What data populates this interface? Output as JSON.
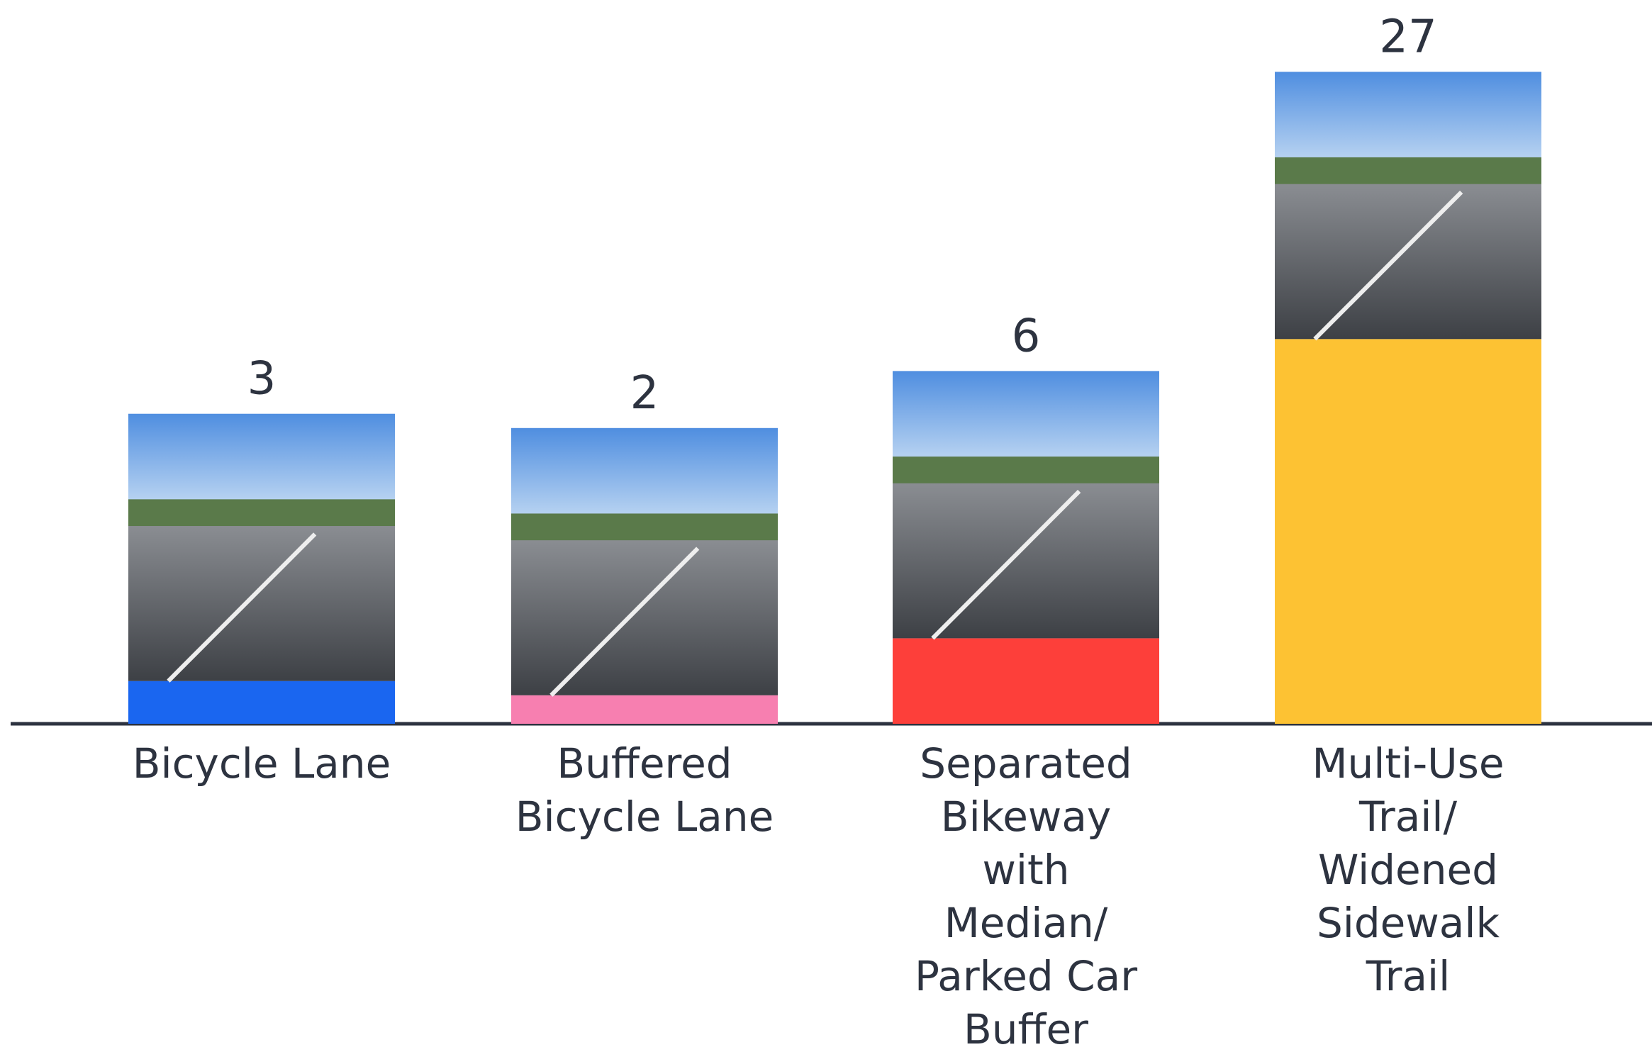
{
  "chart_data": {
    "type": "bar",
    "categories": [
      "Bicycle Lane",
      "Buffered Bicycle Lane",
      "Separated Bikeway with Median/ Parked Car Buffer",
      "Multi-Use Trail/ Widened Sidewalk Trail"
    ],
    "values": [
      3,
      2,
      6,
      27
    ],
    "colors": [
      "#1a66f0",
      "#f77fb0",
      "#fd3f3a",
      "#fdc233"
    ]
  }
}
